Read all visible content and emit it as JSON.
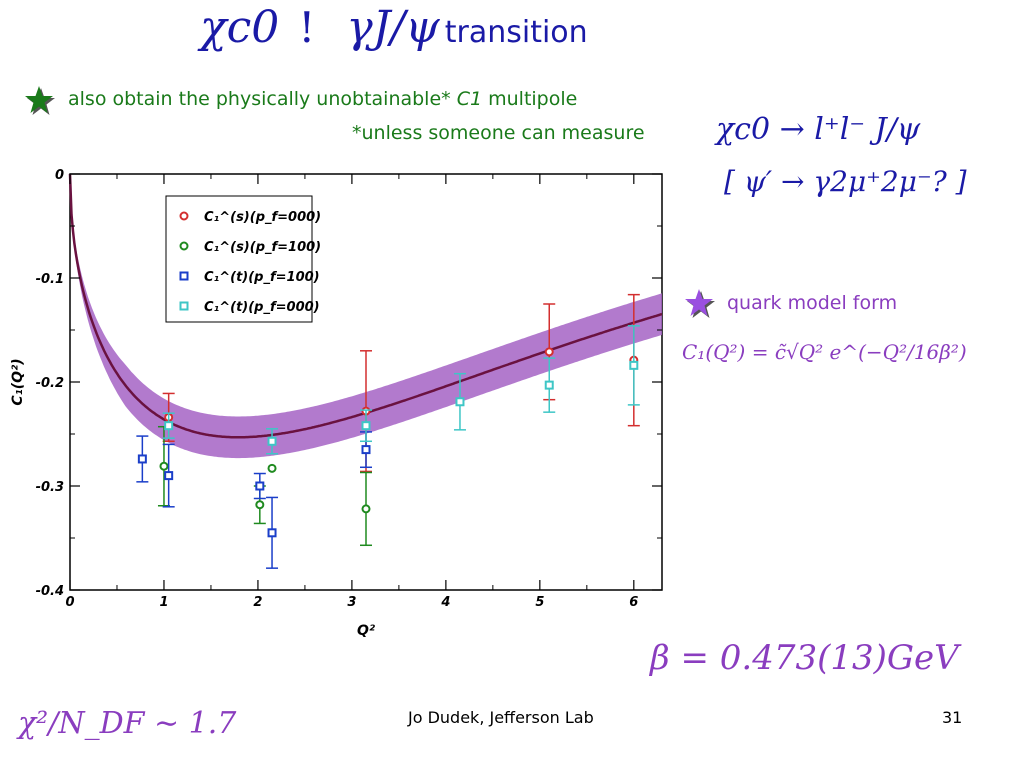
{
  "slide": {
    "title_math_left": "χc0",
    "title_bang": "!",
    "title_math_right": "γJ/ψ",
    "title_text": "transition",
    "bullet1_text_a": "also obtain the physically unobtainable*",
    "bullet1_text_c1": "C1",
    "bullet1_text_b": "multipole",
    "footnote": "*unless someone can measure",
    "formula_decay": "χc0 → l⁺l⁻ J/ψ",
    "formula_bracket": "[ ψ′ → γ2μ⁺2μ⁻? ]",
    "bullet2_text": "quark model form",
    "formula_model": "C₁(Q²) = c̃√Q² e^(−Q²/16β²)",
    "beta_result": "β = 0.473(13)GeV",
    "chi2": "χ²/N_DF ∼ 1.7",
    "footer": "Jo Dudek, Jefferson Lab",
    "page_number": "31",
    "colors": {
      "title": "#1a1aa6",
      "green": "#1a7a1a",
      "purple": "#8a3dbf",
      "band": "#a463c4",
      "curve": "#6a1240"
    }
  },
  "chart_data": {
    "type": "scatter",
    "xlabel": "Q²",
    "ylabel": "C₁(Q²)",
    "xlim": [
      0,
      6.3
    ],
    "ylim": [
      -0.4,
      0
    ],
    "xticks": [
      "0",
      "1",
      "2",
      "3",
      "4",
      "5",
      "6"
    ],
    "yticks": [
      "0",
      "-0.1",
      "-0.2",
      "-0.3",
      "-0.4"
    ],
    "legend_position": "top-left",
    "series": [
      {
        "name": "C₁^(s)(p_f=000)",
        "color": "#d32f2f",
        "marker": "circle",
        "points": [
          {
            "x": 1.05,
            "y": -0.234,
            "err": 0.023
          },
          {
            "x": 3.15,
            "y": -0.228,
            "err": 0.058
          },
          {
            "x": 5.1,
            "y": -0.171,
            "err": 0.046
          },
          {
            "x": 6.0,
            "y": -0.179,
            "err": 0.063
          }
        ]
      },
      {
        "name": "C₁^(s)(p_f=100)",
        "color": "#1f8a1f",
        "marker": "circle",
        "points": [
          {
            "x": 1.0,
            "y": -0.281,
            "err": 0.038
          },
          {
            "x": 2.02,
            "y": -0.318,
            "err": 0.018
          },
          {
            "x": 3.15,
            "y": -0.322,
            "err": 0.035
          },
          {
            "x": 2.15,
            "y": -0.283,
            "err": 0.0
          }
        ]
      },
      {
        "name": "C₁^(t)(p_f=100)",
        "color": "#1a3ec9",
        "marker": "square",
        "points": [
          {
            "x": 0.77,
            "y": -0.274,
            "err": 0.022
          },
          {
            "x": 1.05,
            "y": -0.29,
            "err": 0.03
          },
          {
            "x": 2.02,
            "y": -0.3,
            "err": 0.012
          },
          {
            "x": 2.15,
            "y": -0.345,
            "err": 0.034
          },
          {
            "x": 3.15,
            "y": -0.265,
            "err": 0.017
          }
        ]
      },
      {
        "name": "C₁^(t)(p_f=000)",
        "color": "#3ec6c6",
        "marker": "square",
        "points": [
          {
            "x": 1.05,
            "y": -0.242,
            "err": 0.012
          },
          {
            "x": 2.15,
            "y": -0.257,
            "err": 0.012
          },
          {
            "x": 3.15,
            "y": -0.242,
            "err": 0.015
          },
          {
            "x": 4.15,
            "y": -0.219,
            "err": 0.027
          },
          {
            "x": 5.1,
            "y": -0.203,
            "err": 0.026
          },
          {
            "x": 6.0,
            "y": -0.184,
            "err": 0.038
          }
        ]
      }
    ],
    "fit": {
      "c_tilde": 0.312,
      "beta_sq": 0.2237,
      "band_halfwidth": 0.02
    }
  }
}
